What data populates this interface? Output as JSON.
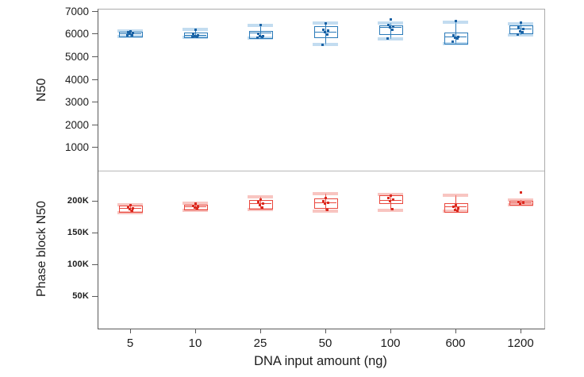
{
  "chart_data": {
    "type": "boxplot",
    "title": "",
    "xlabel": "DNA input amount (ng)",
    "categories": [
      "5",
      "10",
      "25",
      "50",
      "100",
      "600",
      "1200"
    ],
    "legend": null,
    "grid": false,
    "panels": [
      {
        "ylabel": "N50",
        "ylim": [
          -25,
          7080
        ],
        "yticks": [
          {
            "v": 1000,
            "label": "1000"
          },
          {
            "v": 2000,
            "label": "2000"
          },
          {
            "v": 3000,
            "label": "3000"
          },
          {
            "v": 4000,
            "label": "4000"
          },
          {
            "v": 5000,
            "label": "5000"
          },
          {
            "v": 6000,
            "label": "6000"
          },
          {
            "v": 7000,
            "label": "7000"
          }
        ],
        "box_color": "#2a7ab9",
        "point_color": "#1a62a5",
        "band_color": "#8fc0e4",
        "boxes": [
          {
            "category": "5",
            "low": 5880,
            "q1": 5920,
            "median": 6010,
            "q3": 6100,
            "high": 6150,
            "points": [
              6130,
              6080,
              6040,
              6000,
              5960,
              5930
            ]
          },
          {
            "category": "10",
            "low": 5840,
            "q1": 5880,
            "median": 5960,
            "q3": 6070,
            "high": 6190,
            "points": [
              6190,
              6000,
              5950,
              5920,
              5890,
              5860
            ]
          },
          {
            "category": "25",
            "low": 5810,
            "q1": 5840,
            "median": 6040,
            "q3": 6130,
            "high": 6390,
            "points": [
              6390,
              6000,
              5920,
              5900,
              5870,
              5840
            ]
          },
          {
            "category": "50",
            "low": 5540,
            "q1": 5890,
            "median": 6090,
            "q3": 6350,
            "high": 6480,
            "points": [
              6480,
              6200,
              6150,
              6090,
              5990,
              5540
            ]
          },
          {
            "category": "100",
            "low": 5780,
            "q1": 6020,
            "median": 6280,
            "q3": 6390,
            "high": 6470,
            "points": [
              6630,
              6400,
              6330,
              6280,
              6180,
              5790
            ]
          },
          {
            "category": "600",
            "low": 5570,
            "q1": 5600,
            "median": 5880,
            "q3": 6050,
            "high": 6520,
            "points": [
              6560,
              5930,
              5890,
              5850,
              5800,
              5650
            ]
          },
          {
            "category": "1200",
            "low": 5970,
            "q1": 6050,
            "median": 6230,
            "q3": 6370,
            "high": 6460,
            "points": [
              6490,
              6280,
              6230,
              6120,
              6080,
              5990
            ]
          }
        ]
      },
      {
        "ylabel": "Phase block N50",
        "ylim": [
          0,
          247500
        ],
        "yticks": [
          {
            "v": 50000,
            "label": "50K"
          },
          {
            "v": 100000,
            "label": "100K"
          },
          {
            "v": 150000,
            "label": "150K"
          },
          {
            "v": 200000,
            "label": "200K"
          }
        ],
        "box_color": "#e9473d",
        "point_color": "#da291f",
        "band_color": "#f2958e",
        "boxes": [
          {
            "category": "5",
            "low": 182000,
            "q1": 184500,
            "median": 189000,
            "q3": 192500,
            "high": 194500,
            "points": [
              193000,
              190000,
              188500,
              187000,
              185000
            ]
          },
          {
            "category": "10",
            "low": 185500,
            "q1": 187500,
            "median": 191000,
            "q3": 194500,
            "high": 196500,
            "points": [
              195500,
              192500,
              191000,
              190000,
              188500
            ]
          },
          {
            "category": "25",
            "low": 186000,
            "q1": 189000,
            "median": 196000,
            "q3": 201500,
            "high": 206500,
            "points": [
              202000,
              198000,
              196000,
              193000,
              190000
            ]
          },
          {
            "category": "50",
            "low": 183500,
            "q1": 190500,
            "median": 197500,
            "q3": 204000,
            "high": 211500,
            "points": [
              205000,
              199000,
              197500,
              196000,
              185500
            ]
          },
          {
            "category": "100",
            "low": 185500,
            "q1": 197500,
            "median": 201000,
            "q3": 208500,
            "high": 210000,
            "points": [
              208000,
              204000,
              201500,
              199000,
              187000
            ]
          },
          {
            "category": "600",
            "low": 183500,
            "q1": 184500,
            "median": 191500,
            "q3": 197000,
            "high": 209500,
            "points": [
              194000,
              191000,
              189000,
              186500,
              184500
            ]
          },
          {
            "category": "1200",
            "low": 194500,
            "q1": 195500,
            "median": 197500,
            "q3": 200000,
            "high": 201000,
            "points": [
              213500,
              198500,
              197500,
              196500
            ]
          }
        ]
      }
    ]
  }
}
